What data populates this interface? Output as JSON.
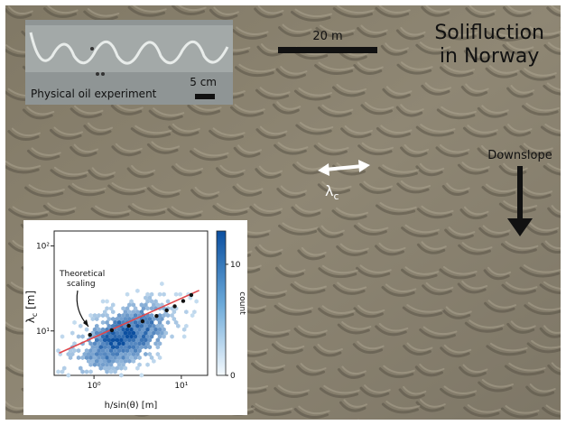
{
  "title_lines": [
    "Solifluction",
    "in Norway"
  ],
  "scale_bar_label": "20 m",
  "downslope_label": "Downslope",
  "lambda_label": "λ",
  "lambda_sub": "c",
  "inset_top": {
    "caption": "Physical oil experiment",
    "scale_label": "5 cm"
  },
  "colors": {
    "terrain": "#8a826f",
    "terrain_dark": "#5e584b",
    "accent_line": "#e0474c",
    "hex_dark": "#0b4fa0",
    "hex_light": "#cfe4f4"
  },
  "chart_data": {
    "type": "heatmap",
    "xlabel": "h/sin(θ) [m]",
    "ylabel": "λ_c [m]",
    "x_scale": "log",
    "y_scale": "log",
    "x_ticks": [
      "10⁰",
      "10¹"
    ],
    "y_ticks": [
      "10¹",
      "10²"
    ],
    "xlim": [
      0.35,
      20
    ],
    "ylim": [
      3,
      150
    ],
    "annotation": "Theoretical\nscaling",
    "colorbar": {
      "label": "count",
      "ticks": [
        "0",
        "10"
      ],
      "range": [
        0,
        13
      ]
    },
    "line": {
      "x": [
        0.4,
        16
      ],
      "y": [
        5.5,
        30
      ]
    },
    "binned_points": {
      "x": [
        0.9,
        1.6,
        2.5,
        3.6,
        5.2,
        6.8,
        8.4,
        10.5,
        13
      ],
      "y": [
        9.0,
        10.2,
        11.5,
        13.0,
        15.0,
        17.5,
        19.5,
        22.5,
        26.5
      ]
    }
  }
}
